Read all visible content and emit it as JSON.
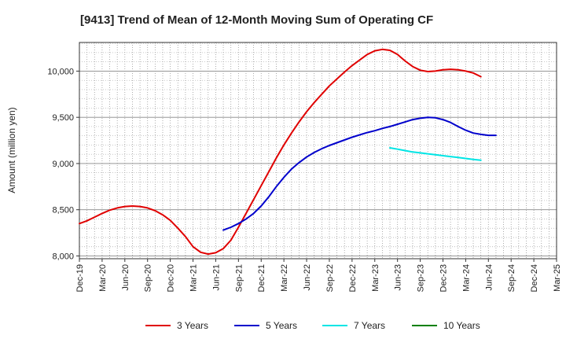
{
  "chart_data": {
    "type": "line",
    "title": "[9413]  Trend of Mean of 12-Month Moving Sum of Operating CF",
    "xlabel": "",
    "ylabel": "Amount (million yen)",
    "ylim": [
      7970,
      10310
    ],
    "yticks": [
      8000,
      8500,
      9000,
      9500,
      10000
    ],
    "ytick_labels": [
      "8,000",
      "8,500",
      "9,000",
      "9,500",
      "10,000"
    ],
    "x_categories": [
      "Dec-19",
      "Mar-20",
      "Jun-20",
      "Sep-20",
      "Dec-20",
      "Mar-21",
      "Jun-21",
      "Sep-21",
      "Dec-21",
      "Mar-22",
      "Jun-22",
      "Sep-22",
      "Dec-22",
      "Mar-23",
      "Jun-23",
      "Sep-23",
      "Dec-23",
      "Mar-24",
      "Jun-24",
      "Sep-24",
      "Dec-24",
      "Mar-25"
    ],
    "series": [
      {
        "name": "3 Years",
        "color": "#e00000",
        "start_index": 0,
        "values": [
          8350,
          8380,
          8420,
          8460,
          8495,
          8520,
          8535,
          8540,
          8535,
          8520,
          8490,
          8445,
          8385,
          8300,
          8210,
          8100,
          8040,
          8020,
          8035,
          8080,
          8170,
          8310,
          8460,
          8610,
          8760,
          8910,
          9060,
          9200,
          9330,
          9450,
          9560,
          9660,
          9750,
          9840,
          9915,
          9990,
          10060,
          10120,
          10180,
          10220,
          10235,
          10225,
          10180,
          10110,
          10050,
          10010,
          9995,
          10000,
          10015,
          10020,
          10015,
          10000,
          9980,
          9940
        ]
      },
      {
        "name": "5 Years",
        "color": "#0000cc",
        "start_index": 19,
        "values": [
          8280,
          8310,
          8350,
          8400,
          8460,
          8540,
          8640,
          8750,
          8850,
          8940,
          9010,
          9070,
          9120,
          9160,
          9195,
          9225,
          9255,
          9285,
          9310,
          9335,
          9355,
          9380,
          9400,
          9425,
          9450,
          9475,
          9490,
          9500,
          9495,
          9475,
          9445,
          9400,
          9360,
          9330,
          9315,
          9305,
          9305
        ]
      },
      {
        "name": "7 Years",
        "color": "#00e5e5",
        "start_index": 41,
        "values": [
          9170,
          9155,
          9140,
          9125,
          9115,
          9105,
          9095,
          9085,
          9075,
          9065,
          9055,
          9045,
          9035
        ]
      },
      {
        "name": "10 Years",
        "color": "#008000",
        "start_index": 0,
        "values": []
      }
    ],
    "grid": true,
    "legend_position": "bottom"
  }
}
